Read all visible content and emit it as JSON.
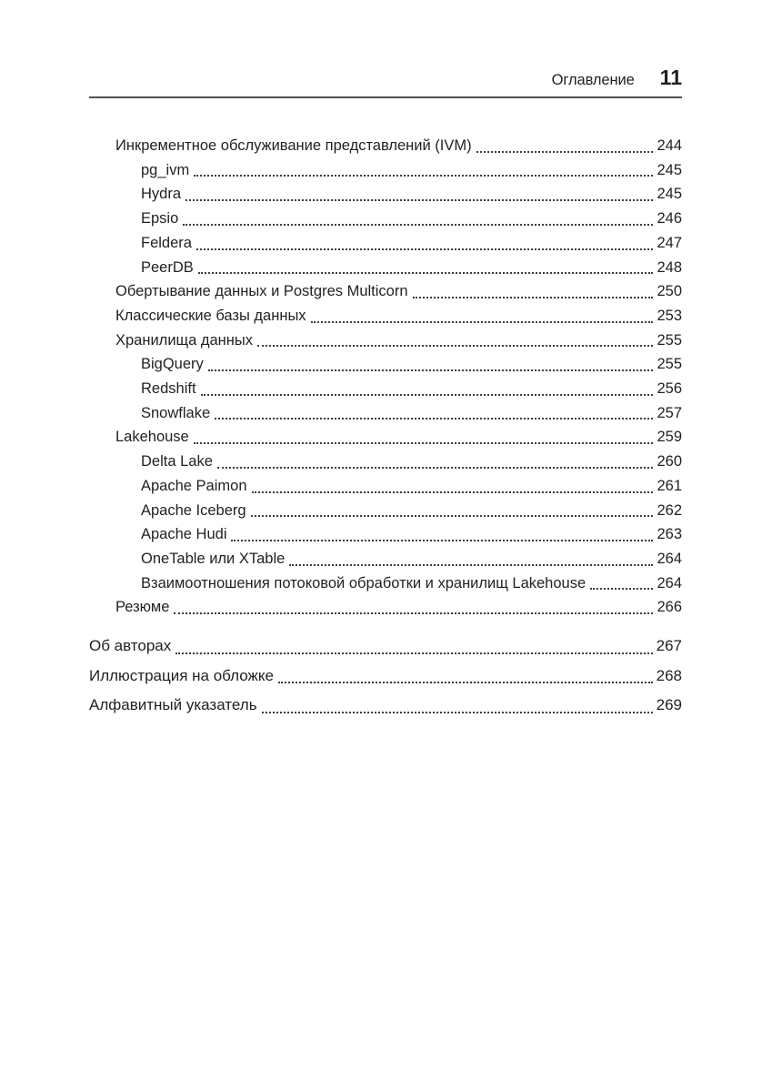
{
  "header": {
    "running_title": "Оглавление",
    "page_number": "11"
  },
  "colors": {
    "text": "#231f20",
    "rule": "#4f5052",
    "dots": "#3c3c3c"
  },
  "toc": {
    "entries": [
      {
        "level": 1,
        "title": "Инкрементное обслуживание представлений (IVM)",
        "page": "244"
      },
      {
        "level": 2,
        "title": "pg_ivm",
        "page": "245"
      },
      {
        "level": 2,
        "title": "Hydra",
        "page": "245"
      },
      {
        "level": 2,
        "title": "Epsio",
        "page": "246"
      },
      {
        "level": 2,
        "title": "Feldera",
        "page": "247"
      },
      {
        "level": 2,
        "title": "PeerDB",
        "page": "248"
      },
      {
        "level": 1,
        "title": "Обертывание данных и Postgres Multicorn",
        "page": "250"
      },
      {
        "level": 1,
        "title": "Классические базы данных",
        "page": "253"
      },
      {
        "level": 1,
        "title": "Хранилища данных",
        "page": "255"
      },
      {
        "level": 2,
        "title": "BigQuery",
        "page": "255"
      },
      {
        "level": 2,
        "title": "Redshift",
        "page": "256"
      },
      {
        "level": 2,
        "title": "Snowflake",
        "page": "257"
      },
      {
        "level": 1,
        "title": "Lakehouse",
        "page": "259"
      },
      {
        "level": 2,
        "title": "Delta Lake",
        "page": "260"
      },
      {
        "level": 2,
        "title": "Apache Paimon",
        "page": "261"
      },
      {
        "level": 2,
        "title": "Apache Iceberg",
        "page": "262"
      },
      {
        "level": 2,
        "title": "Apache Hudi",
        "page": "263"
      },
      {
        "level": 2,
        "title": "OneTable или XTable",
        "page": "264"
      },
      {
        "level": 2,
        "title": "Взаимоотношения потоковой обработки и хранилищ Lakehouse",
        "page": "264"
      },
      {
        "level": 1,
        "title": "Резюме",
        "page": "266"
      }
    ],
    "back_matter": [
      {
        "level": 0,
        "title": "Об авторах",
        "page": "267"
      },
      {
        "level": 0,
        "title": "Иллюстрация на обложке",
        "page": "268"
      },
      {
        "level": 0,
        "title": "Алфавитный указатель",
        "page": "269"
      }
    ]
  }
}
